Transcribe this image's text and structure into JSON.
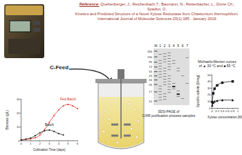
{
  "reference": {
    "label": "Reference:",
    "authors": "Quehenberger, J.; Reichenbach,T.; Baumann, N.; Rettenbacher, L.; Divne Ch.; Spadiut, O.",
    "title": "Kinetics and Predicted Structure of a Novel Xylose Reductase from Chaetomium thermophilum.",
    "journal": "International Journal of Molecular Sciences 20(1):185 - January 2019"
  },
  "feed_label": "C-Feed",
  "gel": {
    "lanes": [
      "M",
      "1",
      "2",
      "3",
      "4",
      "5",
      "6",
      "7"
    ],
    "marker_kda": [
      180,
      130,
      95,
      72,
      55,
      43,
      34,
      26,
      17,
      10
    ],
    "caption": [
      "SDS-PAGE of",
      "CtXR purification process samples"
    ]
  },
  "mm_title": [
    "Michaelis-Menten curves",
    "of ▲ 30 °C and ■ 55 °C"
  ],
  "chart_data": [
    {
      "type": "line",
      "x_label": "Cultivation Time (days)",
      "y_label": "Biomass (g/L)",
      "xlim": [
        0,
        6
      ],
      "xticks": [
        0,
        1,
        2,
        3,
        4,
        5,
        6
      ],
      "ylim": [
        0,
        30
      ],
      "yticks": [
        0,
        10,
        20,
        30
      ],
      "legend": "inline",
      "grid": false,
      "series": [
        {
          "name": "Fed-Batch",
          "color": "#e0301e",
          "marker": "circle",
          "line_style": "solid",
          "x": [
            0,
            0.5,
            1,
            1.5,
            2,
            2.5,
            3,
            3.5,
            4,
            4.5,
            5,
            5.5,
            6
          ],
          "values": [
            0.5,
            0.8,
            1.2,
            2,
            4,
            8,
            13,
            18,
            22,
            25,
            26,
            25,
            23
          ]
        },
        {
          "name": "Batch",
          "color": "#111111",
          "marker": "circle",
          "line_style": "solid",
          "x": [
            0,
            0.5,
            1,
            1.5,
            2,
            2.5,
            3,
            3.5,
            4,
            4.5
          ],
          "values": [
            0.5,
            1,
            1.8,
            3.5,
            5.5,
            7,
            7.5,
            6.5,
            5,
            4
          ]
        }
      ]
    },
    {
      "type": "line",
      "x_label": "Xylose concentration [M]",
      "y_label": "Specific activity [U/mg]",
      "xlim": [
        0,
        1
      ],
      "xticks": [
        0,
        0.2,
        0.4,
        0.6,
        0.8,
        1
      ],
      "ylim": [
        0,
        50
      ],
      "yticks": [
        0,
        10,
        20,
        30,
        40,
        50
      ],
      "legend": false,
      "grid": false,
      "series": [
        {
          "color": "#111111",
          "marker": "triangle",
          "line_style": "solid",
          "x": [
            0.01,
            0.05,
            0.1,
            0.2,
            0.4,
            0.8
          ],
          "values": [
            4,
            8,
            10,
            11,
            12,
            12
          ]
        },
        {
          "color": "#111111",
          "marker": "square",
          "line_style": "solid",
          "x": [
            0.01,
            0.05,
            0.1,
            0.2,
            0.4,
            0.8
          ],
          "values": [
            9,
            22,
            29,
            34,
            38,
            40
          ]
        }
      ]
    }
  ]
}
